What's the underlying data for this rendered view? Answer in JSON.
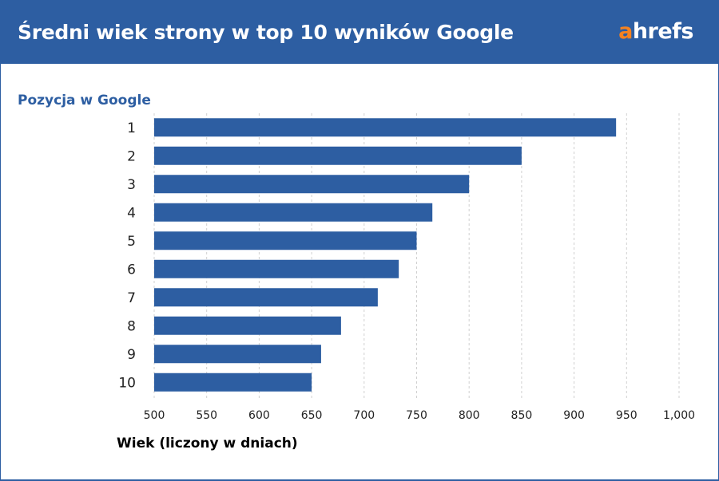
{
  "header": {
    "title": "Średni wiek strony w top 10 wyników Google",
    "logo_main": "a",
    "logo_rest": "hrefs",
    "background": "#2d5ea2",
    "logo_accent": "#f58220"
  },
  "chart_data": {
    "type": "bar",
    "orientation": "horizontal",
    "title": "Średni wiek strony w top 10 wyników Google",
    "ylabel": "Pozycja w Google",
    "xlabel": "Wiek (liczony w dniach)",
    "categories": [
      "1",
      "2",
      "3",
      "4",
      "5",
      "6",
      "7",
      "8",
      "9",
      "10"
    ],
    "values": [
      940,
      850,
      800,
      765,
      750,
      733,
      713,
      678,
      659,
      650
    ],
    "xlim": [
      500,
      1000
    ],
    "xticks": [
      "500",
      "550",
      "600",
      "650",
      "700",
      "750",
      "800",
      "850",
      "900",
      "950",
      "1,000"
    ],
    "grid": "vertical dashed",
    "bar_color": "#2d5ea2"
  }
}
